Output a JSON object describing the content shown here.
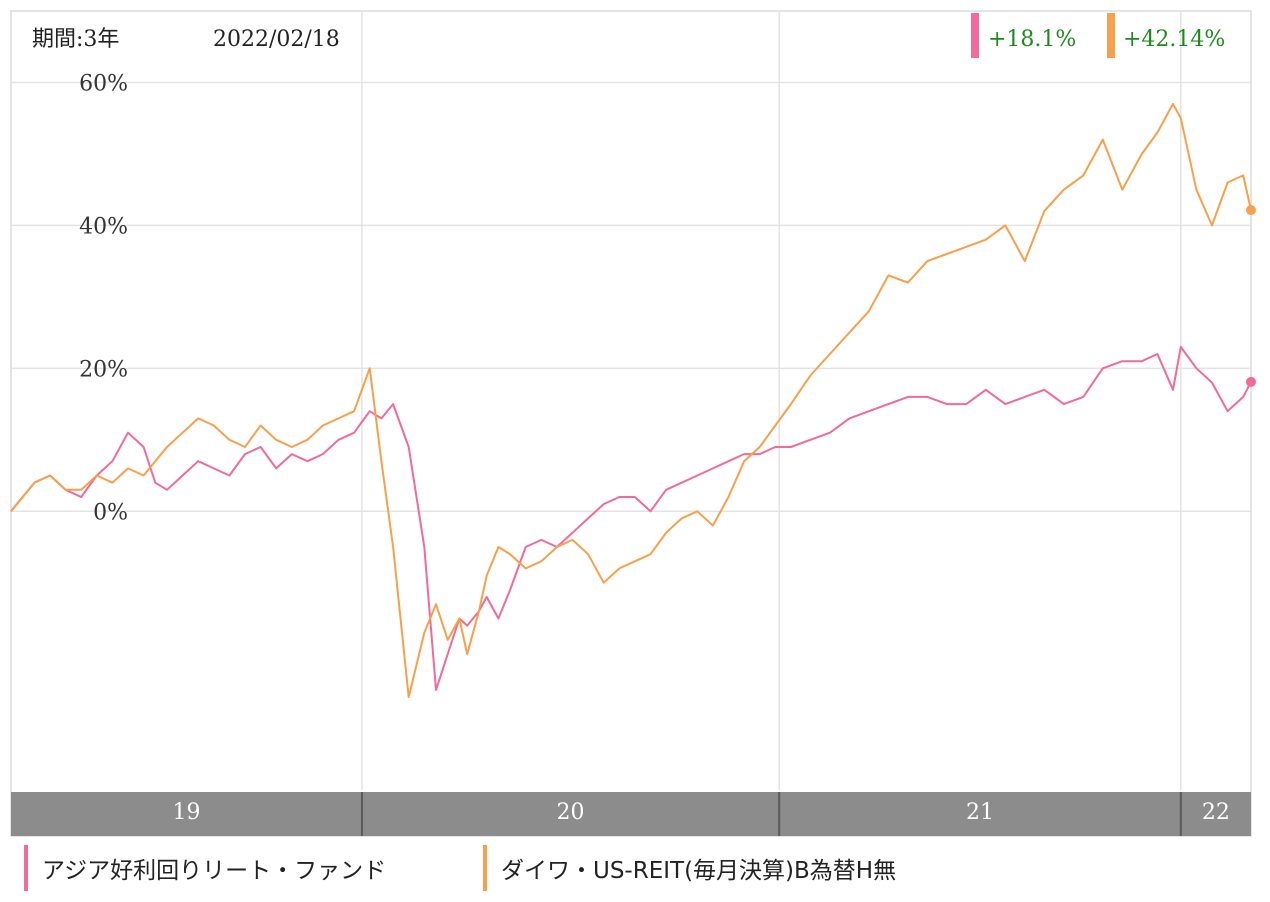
{
  "header": {
    "period_label": "期間:3年",
    "date": "2022/02/18",
    "returns": [
      {
        "value": "+18.1%",
        "color": "#f06a9a"
      },
      {
        "value": "+42.14%",
        "color": "#f7a04b"
      }
    ]
  },
  "colors": {
    "series_pink": "#f06a9a",
    "series_orange": "#f7a04b",
    "return_text": "#1e8a1e",
    "axis_band": "#8c8c8c",
    "grid": "#e3e3e3"
  },
  "legend": [
    {
      "label": "アジア好利回りリート・ファンド",
      "color": "#f06a9a"
    },
    {
      "label": "ダイワ・US-REIT(毎月決算)B為替H無",
      "color": "#f7a04b"
    }
  ],
  "chart_data": {
    "type": "line",
    "y_ticks": [
      "60%",
      "40%",
      "20%",
      "0%"
    ],
    "y_tick_values": [
      60,
      40,
      20,
      0
    ],
    "ylim": [
      -39,
      70
    ],
    "xlim": [
      2019.0,
      2022.18
    ],
    "x_ticks": [
      "19",
      "20",
      "21",
      "22"
    ],
    "x_tick_bands": [
      [
        2019.0,
        2019.9
      ],
      [
        2019.9,
        2020.97
      ],
      [
        2020.97,
        2022.0
      ],
      [
        2022.0,
        2022.18
      ]
    ],
    "x_gridlines": [
      2019.9,
      2020.97,
      2022.0
    ],
    "grid": true,
    "series": [
      {
        "name": "アジア好利回りリート・ファンド",
        "color": "#f06a9a",
        "x": [
          2019.0,
          2019.03,
          2019.06,
          2019.1,
          2019.14,
          2019.18,
          2019.22,
          2019.26,
          2019.3,
          2019.34,
          2019.37,
          2019.4,
          2019.44,
          2019.48,
          2019.52,
          2019.56,
          2019.6,
          2019.64,
          2019.68,
          2019.72,
          2019.76,
          2019.8,
          2019.84,
          2019.88,
          2019.92,
          2019.95,
          2019.98,
          2020.02,
          2020.06,
          2020.09,
          2020.12,
          2020.15,
          2020.17,
          2020.2,
          2020.22,
          2020.25,
          2020.28,
          2020.32,
          2020.36,
          2020.4,
          2020.44,
          2020.48,
          2020.52,
          2020.56,
          2020.6,
          2020.64,
          2020.68,
          2020.72,
          2020.76,
          2020.8,
          2020.84,
          2020.88,
          2020.92,
          2020.96,
          2021.0,
          2021.05,
          2021.1,
          2021.15,
          2021.2,
          2021.25,
          2021.3,
          2021.35,
          2021.4,
          2021.45,
          2021.5,
          2021.55,
          2021.6,
          2021.65,
          2021.7,
          2021.75,
          2021.8,
          2021.85,
          2021.9,
          2021.94,
          2021.98,
          2022.0,
          2022.04,
          2022.08,
          2022.12,
          2022.16,
          2022.18
        ],
        "values": [
          0,
          2,
          4,
          5,
          3,
          2,
          5,
          7,
          11,
          9,
          4,
          3,
          5,
          7,
          6,
          5,
          8,
          9,
          6,
          8,
          7,
          8,
          10,
          11,
          14,
          13,
          15,
          9,
          -5,
          -25,
          -20,
          -15,
          -16,
          -14,
          -12,
          -15,
          -11,
          -5,
          -4,
          -5,
          -3,
          -1,
          1,
          2,
          2,
          0,
          3,
          4,
          5,
          6,
          7,
          8,
          8,
          9,
          9,
          10,
          11,
          13,
          14,
          15,
          16,
          16,
          15,
          15,
          17,
          15,
          16,
          17,
          15,
          16,
          20,
          21,
          21,
          22,
          17,
          23,
          20,
          18,
          14,
          16,
          18.1
        ]
      },
      {
        "name": "ダイワ・US-REIT(毎月決算)B為替H無",
        "color": "#f7a04b",
        "x": [
          2019.0,
          2019.03,
          2019.06,
          2019.1,
          2019.14,
          2019.18,
          2019.22,
          2019.26,
          2019.3,
          2019.34,
          2019.37,
          2019.4,
          2019.44,
          2019.48,
          2019.52,
          2019.56,
          2019.6,
          2019.64,
          2019.68,
          2019.72,
          2019.76,
          2019.8,
          2019.84,
          2019.88,
          2019.92,
          2019.95,
          2019.98,
          2020.02,
          2020.06,
          2020.09,
          2020.12,
          2020.15,
          2020.17,
          2020.2,
          2020.22,
          2020.25,
          2020.28,
          2020.32,
          2020.36,
          2020.4,
          2020.44,
          2020.48,
          2020.52,
          2020.56,
          2020.6,
          2020.64,
          2020.68,
          2020.72,
          2020.76,
          2020.8,
          2020.84,
          2020.88,
          2020.92,
          2020.96,
          2021.0,
          2021.05,
          2021.1,
          2021.15,
          2021.2,
          2021.25,
          2021.3,
          2021.35,
          2021.4,
          2021.45,
          2021.5,
          2021.55,
          2021.6,
          2021.65,
          2021.7,
          2021.75,
          2021.8,
          2021.85,
          2021.9,
          2021.94,
          2021.98,
          2022.0,
          2022.04,
          2022.08,
          2022.12,
          2022.16,
          2022.18
        ],
        "values": [
          0,
          2,
          4,
          5,
          3,
          3,
          5,
          4,
          6,
          5,
          7,
          9,
          11,
          13,
          12,
          10,
          9,
          12,
          10,
          9,
          10,
          12,
          13,
          14,
          20,
          7,
          -5,
          -26,
          -17,
          -13,
          -18,
          -15,
          -20,
          -14,
          -9,
          -5,
          -6,
          -8,
          -7,
          -5,
          -4,
          -6,
          -10,
          -8,
          -7,
          -6,
          -3,
          -1,
          0,
          -2,
          2,
          7,
          9,
          12,
          15,
          19,
          22,
          25,
          28,
          33,
          32,
          35,
          36,
          37,
          38,
          40,
          35,
          42,
          45,
          47,
          52,
          45,
          50,
          53,
          57,
          55,
          45,
          40,
          46,
          47,
          42.14
        ]
      }
    ]
  }
}
